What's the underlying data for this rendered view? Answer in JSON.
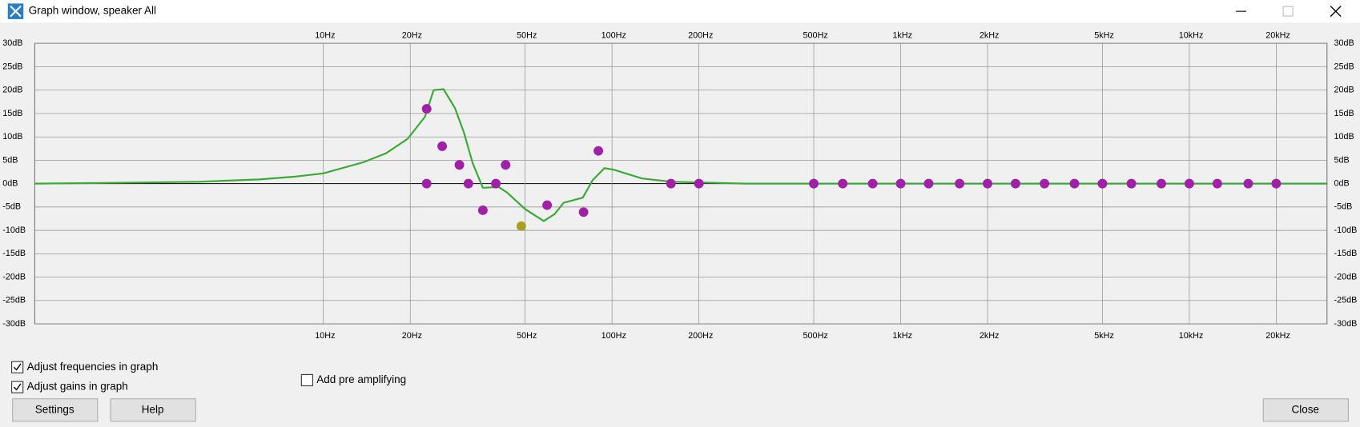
{
  "window": {
    "title": "Graph window, speaker All"
  },
  "chart_data": {
    "type": "line",
    "xscale": "log",
    "grid": true,
    "xlim": [
      1,
      30000
    ],
    "ylim": [
      -30,
      30
    ],
    "xticks": [
      {
        "value": 10,
        "label": "10Hz"
      },
      {
        "value": 20,
        "label": "20Hz"
      },
      {
        "value": 50,
        "label": "50Hz"
      },
      {
        "value": 100,
        "label": "100Hz"
      },
      {
        "value": 200,
        "label": "200Hz"
      },
      {
        "value": 500,
        "label": "500Hz"
      },
      {
        "value": 1000,
        "label": "1kHz"
      },
      {
        "value": 2000,
        "label": "2kHz"
      },
      {
        "value": 5000,
        "label": "5kHz"
      },
      {
        "value": 10000,
        "label": "10kHz"
      },
      {
        "value": 20000,
        "label": "20kHz"
      }
    ],
    "yticks": [
      {
        "value": 30,
        "label": "30dB"
      },
      {
        "value": 25,
        "label": "25dB"
      },
      {
        "value": 20,
        "label": "20dB"
      },
      {
        "value": 15,
        "label": "15dB"
      },
      {
        "value": 10,
        "label": "10dB"
      },
      {
        "value": 5,
        "label": "5dB"
      },
      {
        "value": 0,
        "label": "0dB"
      },
      {
        "value": -5,
        "label": "-5dB"
      },
      {
        "value": -10,
        "label": "-10dB"
      },
      {
        "value": -15,
        "label": "-15dB"
      },
      {
        "value": -20,
        "label": "-20dB"
      },
      {
        "value": -25,
        "label": "-25dB"
      },
      {
        "value": -30,
        "label": "-30dB"
      }
    ],
    "series": [
      {
        "type": "line",
        "color": "#3aa935",
        "x": [
          1,
          2.14,
          3.7,
          6,
          8,
          10,
          13.8,
          16.5,
          19.6,
          22.5,
          24.1,
          26.1,
          28.6,
          30.7,
          32.9,
          35.7,
          40.4,
          43.3,
          49.9,
          58,
          63.3,
          68,
          79.2,
          85.6,
          94.1,
          101,
          127,
          161,
          290,
          30000
        ],
        "values": [
          0,
          0.2,
          0.4,
          0.9,
          1.5,
          2.2,
          4.6,
          6.5,
          9.6,
          14.3,
          20,
          20.2,
          16.1,
          10.9,
          4.4,
          -0.9,
          -0.7,
          -1.9,
          -5.4,
          -8,
          -6.5,
          -4.1,
          -3,
          0.7,
          3.3,
          3,
          1.1,
          0.4,
          0,
          0
        ]
      },
      {
        "type": "scatter",
        "color": "#a020a8",
        "x": [
          22.8,
          22.8,
          25.8,
          29.6,
          31.8,
          35.7,
          39.6,
          42.8,
          59.6,
          79.7,
          89.7,
          160,
          200,
          500,
          630,
          800,
          1000,
          1250,
          1600,
          2000,
          2500,
          3150,
          4000,
          5000,
          6300,
          8000,
          10000,
          12500,
          16000,
          20000
        ],
        "values": [
          16,
          0,
          8,
          4,
          0,
          -5.7,
          0,
          4,
          -4.6,
          -6.1,
          7,
          0,
          0,
          0,
          0,
          0,
          0,
          0,
          0,
          0,
          0,
          0,
          0,
          0,
          0,
          0,
          0,
          0,
          0,
          0
        ]
      },
      {
        "type": "scatter",
        "color": "#a8a020",
        "x": [
          48.5
        ],
        "values": [
          -9.1
        ]
      }
    ]
  },
  "controls": {
    "checkboxes": [
      {
        "label": "Adjust frequencies in graph",
        "checked": true
      },
      {
        "label": "Adjust gains in graph",
        "checked": true
      },
      {
        "label": "Add pre amplifying",
        "checked": false
      }
    ],
    "buttons": [
      "Settings",
      "Help",
      "Close"
    ]
  }
}
